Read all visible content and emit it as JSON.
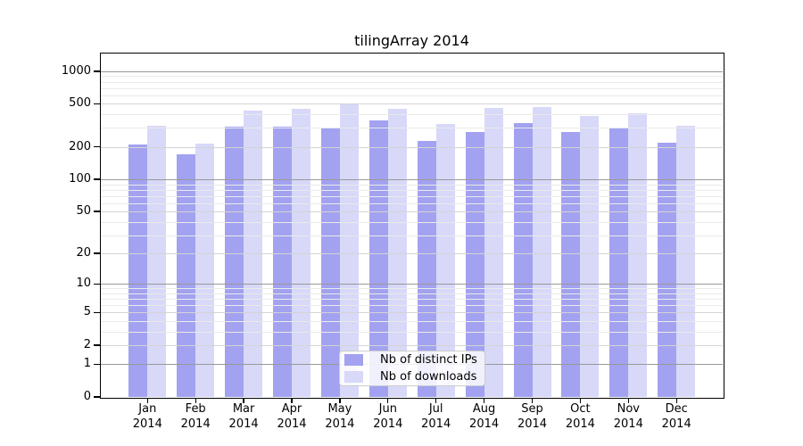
{
  "title": "tilingArray 2014",
  "chart_data": {
    "type": "bar",
    "title": "tilingArray 2014",
    "categories": [
      "Jan",
      "Feb",
      "Mar",
      "Apr",
      "May",
      "Jun",
      "Jul",
      "Aug",
      "Sep",
      "Oct",
      "Nov",
      "Dec"
    ],
    "year": "2014",
    "series": [
      {
        "name": "Nb of distinct IPs",
        "color": "#a2a2f0",
        "values": [
          211,
          170,
          305,
          305,
          296,
          350,
          226,
          275,
          330,
          273,
          296,
          220
        ]
      },
      {
        "name": "Nb of downloads",
        "color": "#d8d8f8",
        "values": [
          313,
          213,
          436,
          452,
          500,
          447,
          324,
          461,
          467,
          389,
          412,
          316
        ]
      }
    ],
    "xlabel": "",
    "ylabel": "",
    "y_scale": "log1p",
    "y_ticks": [
      0,
      1,
      2,
      5,
      10,
      20,
      50,
      100,
      200,
      500,
      1000
    ],
    "y_major_gridlines": [
      1,
      10,
      100,
      1000
    ],
    "y_mid_gridlines": [
      2,
      5,
      20,
      50,
      200,
      500
    ],
    "y_minor_gridlines": [
      3,
      4,
      6,
      7,
      8,
      9,
      30,
      40,
      60,
      70,
      80,
      90,
      300,
      400,
      600,
      700,
      800,
      900
    ],
    "ylim": [
      0,
      1460
    ],
    "grid": "horizontal",
    "legend_position": "bottom-center",
    "colors": {
      "bar_dark": "#a2a2f0",
      "bar_light": "#d8d8f8",
      "grid_major": "#999999",
      "grid_mid": "#d4d4d4",
      "grid_minor": "#eaeaea",
      "frame": "#000000",
      "background": "#ffffff"
    }
  }
}
